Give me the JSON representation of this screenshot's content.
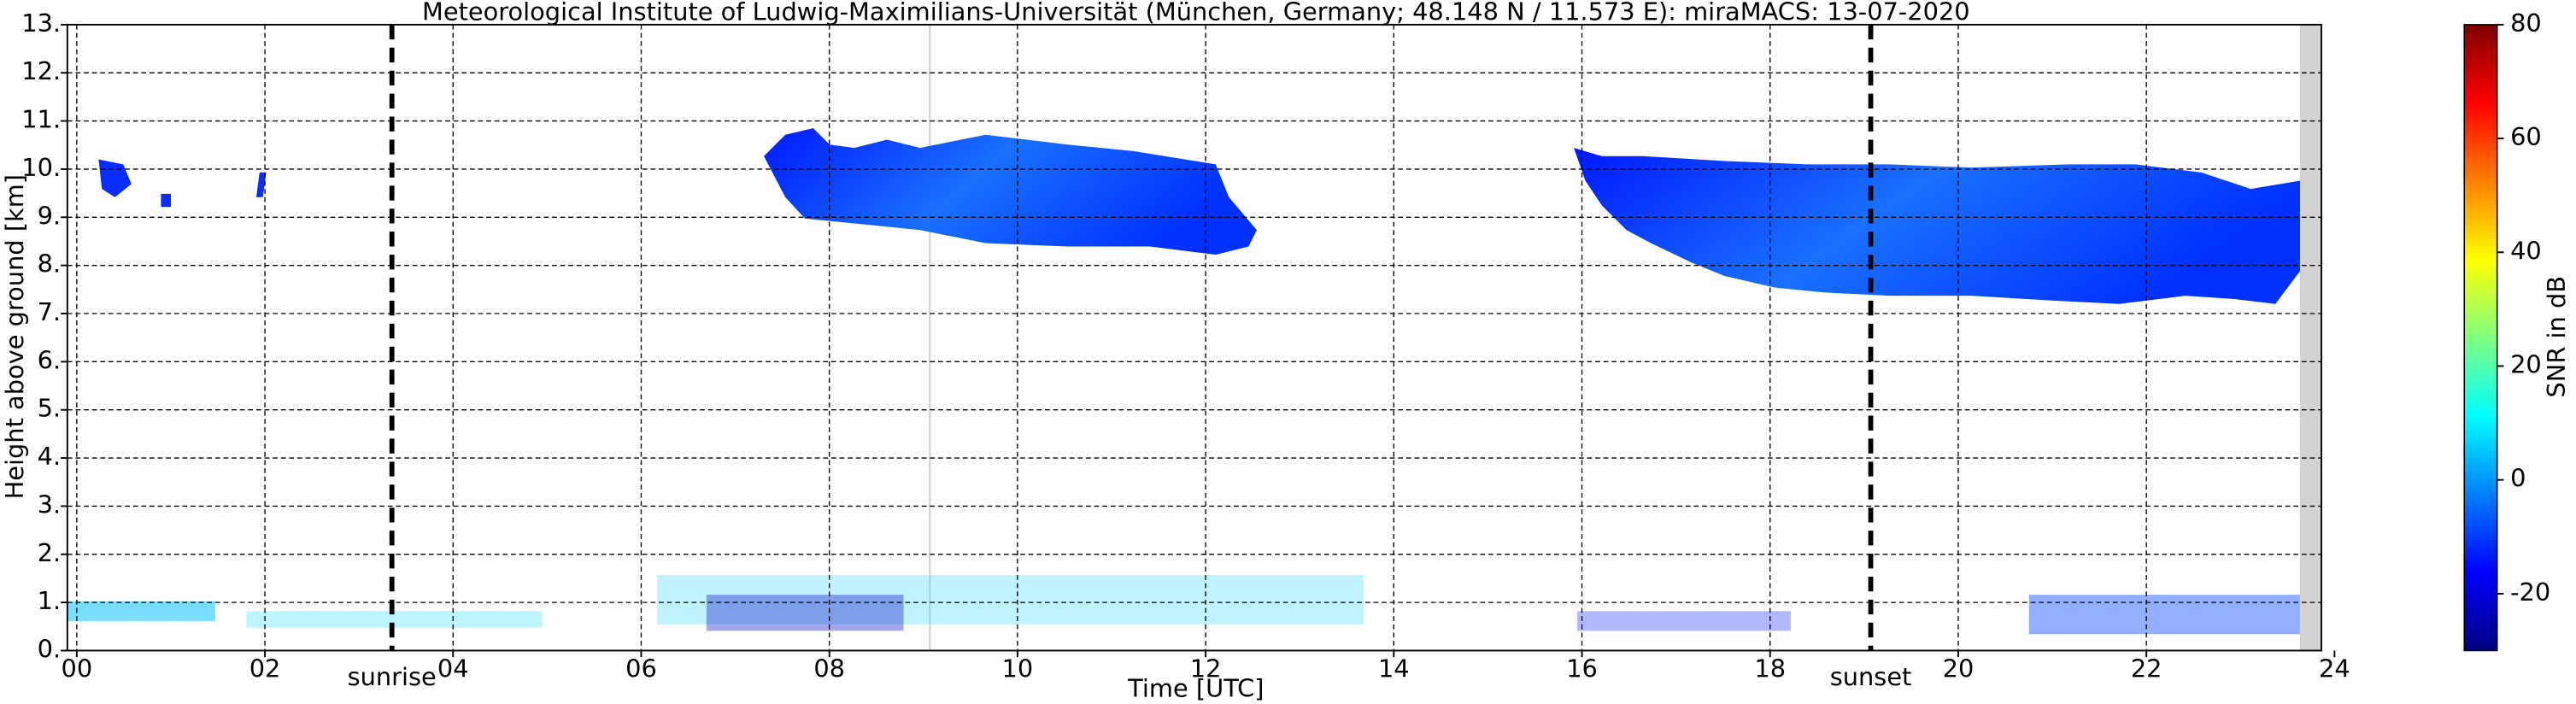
{
  "chart_data": {
    "type": "heatmap",
    "title": "Meteorological Institute of Ludwig-Maximilians-Universität (München, Germany; 48.148 N / 11.573 E):    miraMACS: 13-07-2020",
    "x_label": "Time [UTC]",
    "y_label": "Height above ground [km]",
    "xlim": [
      -0.1,
      23.86
    ],
    "ylim": [
      0,
      13
    ],
    "xticks": [
      {
        "value": 0,
        "label": "00"
      },
      {
        "value": 2,
        "label": "02"
      },
      {
        "value": 4,
        "label": "04"
      },
      {
        "value": 6,
        "label": "06"
      },
      {
        "value": 8,
        "label": "08"
      },
      {
        "value": 10,
        "label": "10"
      },
      {
        "value": 12,
        "label": "12"
      },
      {
        "value": 14,
        "label": "14"
      },
      {
        "value": 16,
        "label": "16"
      },
      {
        "value": 18,
        "label": "18"
      },
      {
        "value": 20,
        "label": "20"
      },
      {
        "value": 22,
        "label": "22"
      },
      {
        "value": 24,
        "label": "24"
      }
    ],
    "yticks": [
      {
        "value": 0,
        "label": "0."
      },
      {
        "value": 1,
        "label": "1."
      },
      {
        "value": 2,
        "label": "2."
      },
      {
        "value": 3,
        "label": "3."
      },
      {
        "value": 4,
        "label": "4."
      },
      {
        "value": 5,
        "label": "5."
      },
      {
        "value": 6,
        "label": "6."
      },
      {
        "value": 7,
        "label": "7."
      },
      {
        "value": 8,
        "label": "8."
      },
      {
        "value": 9,
        "label": "9."
      },
      {
        "value": 10,
        "label": "10."
      },
      {
        "value": 11,
        "label": "11."
      },
      {
        "value": 12,
        "label": "12."
      },
      {
        "value": 13,
        "label": "13."
      }
    ],
    "grid": true,
    "events": [
      {
        "label": "sunrise",
        "x": 3.35
      },
      {
        "label": "sunset",
        "x": 19.07
      }
    ],
    "colorbar": {
      "label": "SNR in dB",
      "colormap": "jet",
      "lim": [
        -30,
        80
      ],
      "ticks": [
        -20,
        0,
        20,
        40,
        60,
        80
      ]
    }
  }
}
